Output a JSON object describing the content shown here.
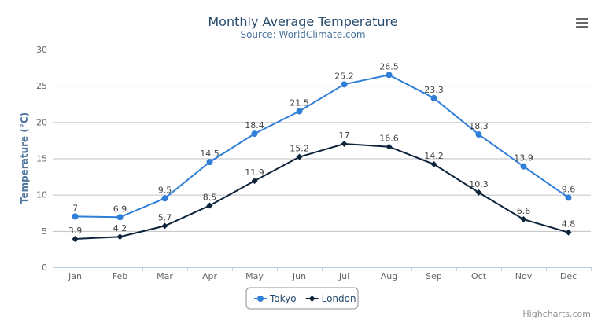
{
  "chart_data": {
    "type": "line",
    "title": "Monthly Average Temperature",
    "subtitle": "Source: WorldClimate.com",
    "xlabel": "",
    "ylabel": "Temperature (°C)",
    "categories": [
      "Jan",
      "Feb",
      "Mar",
      "Apr",
      "May",
      "Jun",
      "Jul",
      "Aug",
      "Sep",
      "Oct",
      "Nov",
      "Dec"
    ],
    "ylim": [
      0,
      30
    ],
    "yticks": [
      0,
      5,
      10,
      15,
      20,
      25,
      30
    ],
    "grid": true,
    "legend_position": "bottom-center",
    "data_labels": true,
    "series": [
      {
        "name": "Tokyo",
        "color": "#2f7ed8",
        "marker": "circle",
        "values": [
          7.0,
          6.9,
          9.5,
          14.5,
          18.4,
          21.5,
          25.2,
          26.5,
          23.3,
          18.3,
          13.9,
          9.6
        ]
      },
      {
        "name": "London",
        "color": "#0d233a",
        "marker": "diamond",
        "values": [
          3.9,
          4.2,
          5.7,
          8.5,
          11.9,
          15.2,
          17.0,
          16.6,
          14.2,
          10.3,
          6.6,
          4.8
        ]
      }
    ]
  },
  "credits": "Highcharts.com",
  "menu_icon": "hamburger-menu-icon"
}
